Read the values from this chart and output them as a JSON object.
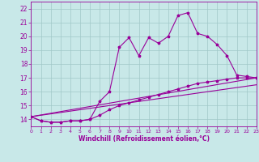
{
  "xlabel": "Windchill (Refroidissement éolien,°C)",
  "xlim": [
    0,
    23
  ],
  "ylim": [
    13.5,
    22.5
  ],
  "yticks": [
    14,
    15,
    16,
    17,
    18,
    19,
    20,
    21,
    22
  ],
  "xticks": [
    0,
    1,
    2,
    3,
    4,
    5,
    6,
    7,
    8,
    9,
    10,
    11,
    12,
    13,
    14,
    15,
    16,
    17,
    18,
    19,
    20,
    21,
    22,
    23
  ],
  "bg_color": "#c8e8e8",
  "line_color": "#990099",
  "grid_color": "#a0c8c8",
  "line1_x": [
    0,
    1,
    2,
    3,
    4,
    5,
    6,
    7,
    8,
    9,
    10,
    11,
    12,
    13,
    14,
    15,
    16,
    17,
    18,
    19,
    20,
    21,
    22,
    23
  ],
  "line1_y": [
    14.2,
    13.9,
    13.8,
    13.8,
    13.9,
    13.9,
    14.0,
    15.3,
    16.0,
    19.2,
    19.9,
    18.6,
    19.9,
    19.5,
    20.0,
    21.5,
    21.7,
    20.2,
    20.0,
    19.4,
    18.6,
    17.2,
    17.1,
    17.0
  ],
  "line2_x": [
    0,
    1,
    2,
    3,
    4,
    5,
    6,
    7,
    8,
    9,
    10,
    11,
    12,
    13,
    14,
    15,
    16,
    17,
    18,
    19,
    20,
    21,
    22,
    23
  ],
  "line2_y": [
    14.2,
    13.9,
    13.8,
    13.8,
    13.9,
    13.9,
    14.0,
    14.3,
    14.7,
    15.0,
    15.2,
    15.4,
    15.6,
    15.8,
    16.0,
    16.2,
    16.4,
    16.6,
    16.7,
    16.8,
    16.9,
    17.0,
    17.0,
    17.0
  ],
  "line3_x": [
    0,
    23
  ],
  "line3_y": [
    14.2,
    16.5
  ],
  "line4_x": [
    0,
    23
  ],
  "line4_y": [
    14.2,
    17.0
  ]
}
